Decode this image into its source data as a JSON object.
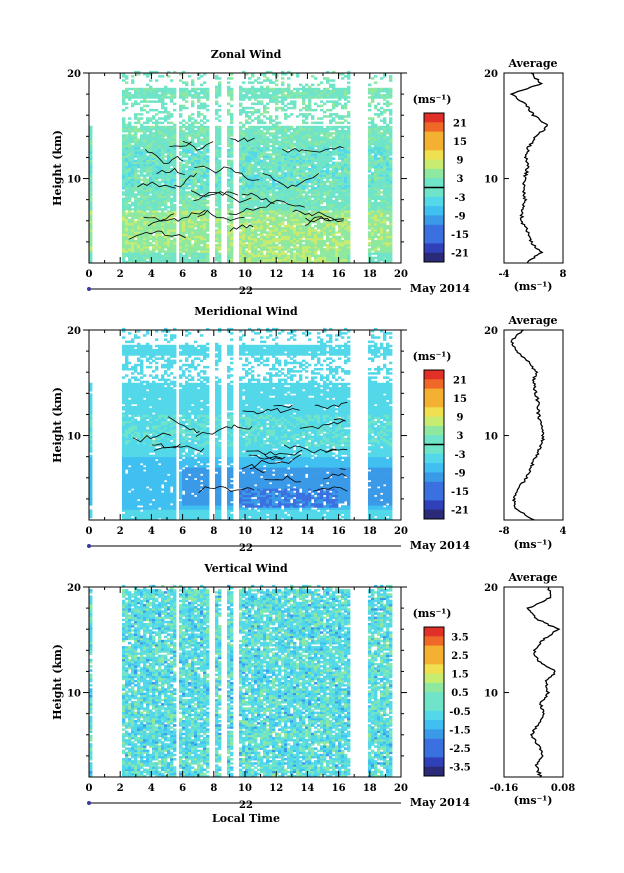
{
  "figure": {
    "bottom_xlabel": "Local Time",
    "month_label": "May 2014",
    "day_label": "22"
  },
  "colors": {
    "palette": [
      "#2a2a78",
      "#3040b8",
      "#3a70e0",
      "#3a9ae8",
      "#40c0f0",
      "#52d8e8",
      "#6fe4c8",
      "#8fe8a0",
      "#c8ec70",
      "#f0e050",
      "#f4b030",
      "#f06828",
      "#e03028"
    ]
  },
  "chart_data": [
    {
      "type": "heatmap",
      "title": "Zonal Wind",
      "xlabel": "",
      "ylabel": "Height (km)",
      "xlim": [
        0,
        20
      ],
      "ylim": [
        2,
        20
      ],
      "xticks": [
        "0",
        "2",
        "4",
        "6",
        "8",
        "10",
        "12",
        "14",
        "16",
        "18",
        "20"
      ],
      "yticks": [
        "10",
        "20"
      ],
      "colorbar": {
        "unit_label": "(ms⁻¹)",
        "range": [
          -24,
          24
        ],
        "ticks": [
          "21",
          "15",
          "9",
          "3",
          "-3",
          "-9",
          "-15",
          "-21"
        ]
      },
      "data_gaps_hours": [
        [
          0.2,
          2.1
        ],
        [
          5.5,
          5.85
        ],
        [
          7.6,
          8.0
        ],
        [
          8.5,
          8.8
        ],
        [
          9.3,
          9.6
        ],
        [
          16.7,
          17.9
        ],
        [
          19.2,
          20
        ]
      ],
      "side_profile": {
        "title": "Average",
        "xlabel": "(ms⁻¹)",
        "xlim": [
          -4,
          8
        ],
        "xticks": [
          "-4",
          "8"
        ],
        "yticks": [
          "10",
          "20"
        ],
        "heights": [
          2,
          3,
          4,
          5,
          6,
          7,
          8,
          9,
          10,
          11,
          12,
          13,
          14,
          15,
          16,
          17,
          18,
          19,
          20
        ],
        "values": [
          0.5,
          3.5,
          1.5,
          0.8,
          -0.5,
          -0.2,
          0.3,
          0.0,
          0.2,
          0.8,
          0.5,
          1.0,
          2.5,
          5.0,
          2.0,
          0.5,
          -2.5,
          3.5,
          1.5
        ]
      }
    },
    {
      "type": "heatmap",
      "title": "Meridional Wind",
      "xlabel": "",
      "ylabel": "Height (km)",
      "xlim": [
        0,
        20
      ],
      "ylim": [
        2,
        20
      ],
      "xticks": [
        "0",
        "2",
        "4",
        "6",
        "8",
        "10",
        "12",
        "14",
        "16",
        "18",
        "20"
      ],
      "yticks": [
        "10",
        "20"
      ],
      "colorbar": {
        "unit_label": "(ms⁻¹)",
        "range": [
          -24,
          24
        ],
        "ticks": [
          "21",
          "15",
          "9",
          "3",
          "-3",
          "-9",
          "-15",
          "-21"
        ]
      },
      "data_gaps_hours": [
        [
          0.2,
          2.1
        ],
        [
          5.5,
          5.85
        ],
        [
          7.6,
          8.0
        ],
        [
          8.5,
          8.8
        ],
        [
          9.3,
          9.6
        ],
        [
          16.7,
          17.9
        ],
        [
          19.2,
          20
        ]
      ],
      "side_profile": {
        "title": "Average",
        "xlabel": "(ms⁻¹)",
        "xlim": [
          -8,
          4
        ],
        "xticks": [
          "-8",
          "4"
        ],
        "yticks": [
          "10",
          "20"
        ],
        "heights": [
          2,
          3,
          4,
          5,
          6,
          7,
          8,
          9,
          10,
          11,
          12,
          13,
          14,
          15,
          16,
          17,
          18,
          19,
          20
        ],
        "values": [
          -2.0,
          -5.5,
          -6.0,
          -5.0,
          -3.5,
          -2.5,
          -1.5,
          -0.5,
          0.0,
          -0.5,
          -1.0,
          -1.0,
          -1.5,
          -2.0,
          -1.5,
          -3.0,
          -5.5,
          -6.5,
          -4.0
        ]
      }
    },
    {
      "type": "heatmap",
      "title": "Vertical Wind",
      "xlabel": "",
      "ylabel": "Height (km)",
      "xlim": [
        0,
        20
      ],
      "ylim": [
        2,
        20
      ],
      "xticks": [
        "0",
        "2",
        "4",
        "6",
        "8",
        "10",
        "12",
        "14",
        "16",
        "18",
        "20"
      ],
      "yticks": [
        "10",
        "20"
      ],
      "colorbar": {
        "unit_label": "(ms⁻¹)",
        "range": [
          -4,
          4
        ],
        "ticks": [
          "3.5",
          "2.5",
          "1.5",
          "0.5",
          "-0.5",
          "-1.5",
          "-2.5",
          "-3.5"
        ]
      },
      "data_gaps_hours": [
        [
          0.2,
          2.1
        ],
        [
          5.5,
          5.85
        ],
        [
          7.6,
          8.0
        ],
        [
          8.5,
          8.8
        ],
        [
          9.3,
          9.6
        ],
        [
          16.7,
          17.9
        ],
        [
          19.2,
          20
        ]
      ],
      "side_profile": {
        "title": "Average",
        "xlabel": "(ms⁻¹)",
        "xlim": [
          -0.16,
          0.08
        ],
        "xticks": [
          "-0.16",
          "0.08"
        ],
        "yticks": [
          "10",
          "20"
        ],
        "heights": [
          2,
          3,
          4,
          5,
          6,
          7,
          8,
          9,
          10,
          11,
          12,
          13,
          14,
          15,
          16,
          17,
          18,
          19,
          20
        ],
        "values": [
          -0.01,
          -0.03,
          0.0,
          -0.02,
          -0.05,
          -0.02,
          0.0,
          -0.01,
          0.02,
          0.01,
          0.05,
          -0.02,
          -0.04,
          0.0,
          0.06,
          -0.03,
          -0.06,
          0.03,
          0.02
        ]
      }
    }
  ]
}
